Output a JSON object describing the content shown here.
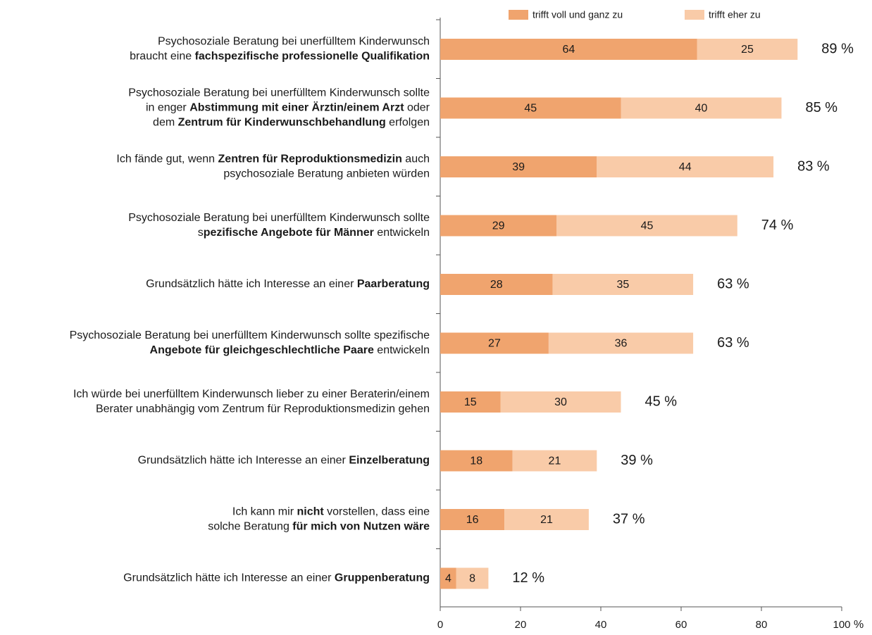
{
  "chart_data": {
    "type": "stacked_barh",
    "categories": [
      [
        [
          "Psychosoziale Beratung bei unerfülltem Kinderwunsch"
        ],
        [
          "braucht eine ",
          {
            "bold": "fachspezifische professionelle Qualifikation"
          }
        ]
      ],
      [
        [
          "Psychosoziale Beratung bei unerfülltem Kinderwunsch sollte"
        ],
        [
          "in enger ",
          {
            "bold": "Abstimmung mit einer Ärztin/einem Arzt"
          },
          " oder"
        ],
        [
          "dem ",
          {
            "bold": "Zentrum für Kinderwunschbehandlung"
          },
          " erfolgen"
        ]
      ],
      [
        [
          "Ich fände gut, wenn ",
          {
            "bold": "Zentren für Reproduktionsmedizin"
          },
          " auch"
        ],
        [
          "psychosoziale Beratung anbieten würden"
        ]
      ],
      [
        [
          "Psychosoziale Beratung bei unerfülltem Kinderwunsch sollte"
        ],
        [
          "s",
          {
            "bold": "pezifische Angebote für Männer"
          },
          " entwickeln"
        ]
      ],
      [
        [
          "Grundsätzlich hätte ich Interesse an einer ",
          {
            "bold": "Paarberatung"
          }
        ]
      ],
      [
        [
          "Psychosoziale Beratung bei unerfülltem Kinderwunsch sollte spezifische"
        ],
        [
          {
            "bold": "Angebote für gleichgeschlechtliche Paare"
          },
          " entwickeln"
        ]
      ],
      [
        [
          "Ich würde bei unerfülltem Kinderwunsch lieber zu einer Beraterin/einem"
        ],
        [
          "Berater unabhängig vom Zentrum für Reproduktionsmedizin gehen"
        ]
      ],
      [
        [
          "Grundsätzlich hätte ich Interesse an einer ",
          {
            "bold": "Einzelberatung"
          }
        ]
      ],
      [
        [
          "Ich kann mir ",
          {
            "bold": "nicht"
          },
          " vorstellen, dass eine"
        ],
        [
          "solche Beratung ",
          {
            "bold": "für mich von Nutzen wäre"
          }
        ]
      ],
      [
        [
          "Grundsätzlich hätte ich Interesse an einer ",
          {
            "bold": "Gruppenberatung"
          }
        ]
      ]
    ],
    "series": [
      {
        "name": "trifft voll und ganz zu",
        "color": "#f0a46e",
        "values": [
          64,
          45,
          39,
          29,
          28,
          27,
          15,
          18,
          16,
          4
        ]
      },
      {
        "name": "trifft eher zu",
        "color": "#f9cba8",
        "values": [
          25,
          40,
          44,
          45,
          35,
          36,
          30,
          21,
          21,
          8
        ]
      }
    ],
    "totals": [
      89,
      85,
      83,
      74,
      63,
      63,
      45,
      39,
      37,
      12
    ],
    "total_labels": [
      "89 %",
      "85 %",
      "83 %",
      "74 %",
      "63 %",
      "63 %",
      "45 %",
      "39 %",
      "37 %",
      "12 %"
    ],
    "xlim": [
      0,
      100
    ],
    "xticks": [
      0,
      20,
      40,
      60,
      80,
      100
    ],
    "xlabel": "%",
    "legend": "top"
  }
}
